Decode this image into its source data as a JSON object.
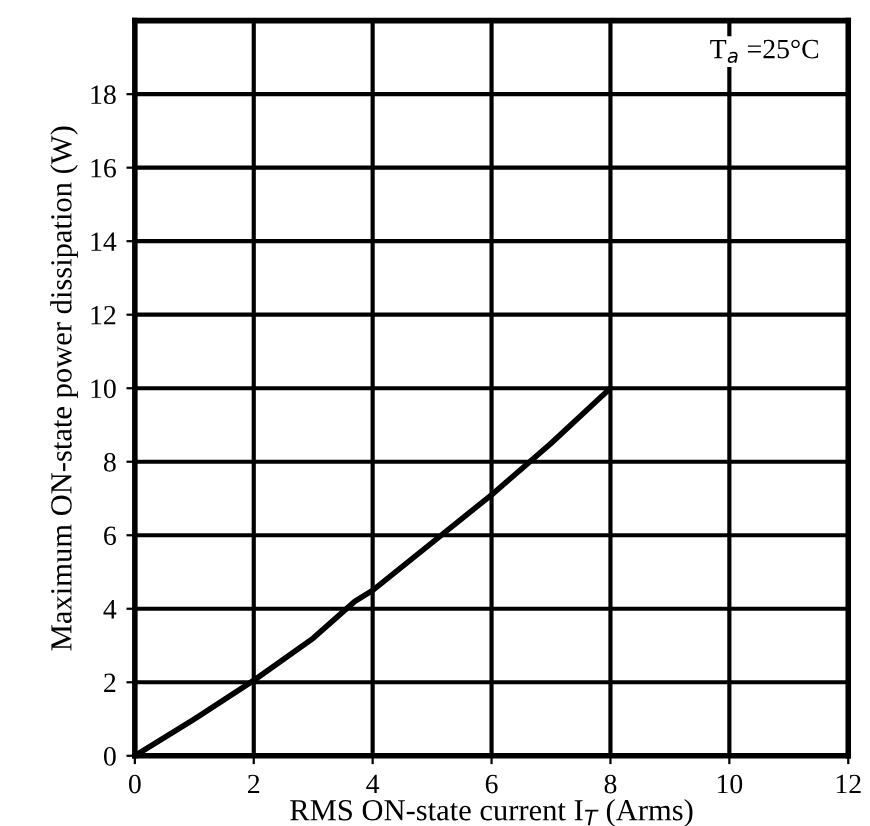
{
  "chart_data": {
    "type": "line",
    "xlabel": "RMS ON-state current I$_{T}$ (Arms)",
    "ylabel": "Maximum ON-state power dissipation (W)",
    "x": [
      0,
      1,
      2,
      3,
      3.7,
      4,
      5,
      6,
      7,
      8
    ],
    "series": [
      {
        "color": "#000000",
        "values": [
          0,
          1,
          2.05,
          3.2,
          4.2,
          4.5,
          5.8,
          7.1,
          8.5,
          10
        ]
      }
    ],
    "xlim": [
      0,
      12
    ],
    "xticks": [
      0,
      2,
      4,
      6,
      8,
      10,
      12
    ],
    "ylim": [
      0,
      20
    ],
    "yticks": [
      0,
      2,
      4,
      6,
      8,
      10,
      12,
      14,
      16,
      18
    ],
    "grid": true,
    "annotations": [
      "T$_{a}$ =25°C"
    ]
  }
}
